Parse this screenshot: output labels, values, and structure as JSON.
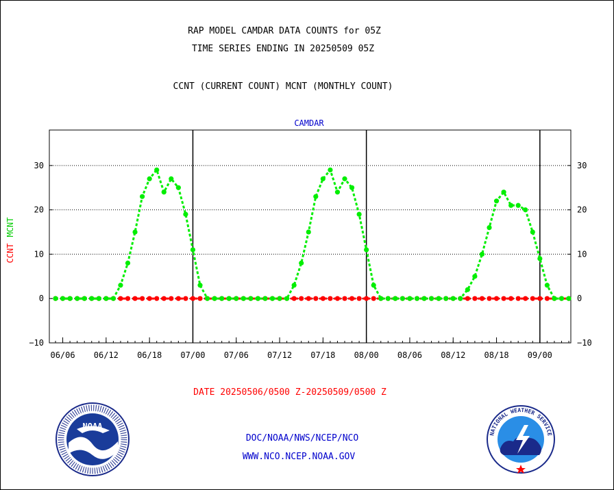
{
  "header": {
    "title_line1": "RAP MODEL CAMDAR DATA COUNTS for 05Z",
    "title_line2": "TIME SERIES ENDING IN 20250509 05Z",
    "subtitle": "CCNT (CURRENT COUNT) MCNT (MONTHLY COUNT)"
  },
  "footer": {
    "date_range": "DATE 20250506/0500 Z-20250509/0500 Z",
    "org_line": "DOC/NOAA/NWS/NCEP/NCO",
    "website": "WWW.NCO.NCEP.NOAA.GOV"
  },
  "logos": {
    "left": "NOAA",
    "right": "NATIONAL WEATHER SERVICE"
  },
  "colors": {
    "ccnt": "#ff0000",
    "mcnt": "#00ee00",
    "label_blue": "#0000cc",
    "date_red": "#ff0000"
  },
  "chart_data": {
    "type": "line",
    "title": "CAMDAR",
    "ylabel_parts": [
      "CCNT",
      "MCNT"
    ],
    "x_tick_labels": [
      "06/06",
      "06/12",
      "06/18",
      "07/00",
      "07/06",
      "07/12",
      "07/18",
      "08/00",
      "08/06",
      "08/12",
      "08/18",
      "09/00"
    ],
    "y_ticks": [
      -10,
      0,
      10,
      20,
      30
    ],
    "ylim": [
      -10,
      38
    ],
    "grid": "dotted horizontal lines at 10, 20, 30; solid vertical lines at day boundaries 07/00, 08/00, 09/00",
    "x_range_hours": [
      0,
      72
    ],
    "x_unit": "hour index from 06/05 Z",
    "series": [
      {
        "name": "CCNT",
        "color": "#ff0000",
        "values": [
          0,
          0,
          0,
          0,
          0,
          0,
          0,
          0,
          0,
          0,
          0,
          0,
          0,
          0,
          0,
          0,
          0,
          0,
          0,
          0,
          0,
          0,
          0,
          0,
          0,
          0,
          0,
          0,
          0,
          0,
          0,
          0,
          0,
          0,
          0,
          0,
          0,
          0,
          0,
          0,
          0,
          0,
          0,
          0,
          0,
          0,
          0,
          0,
          0,
          0,
          0,
          0,
          0,
          0,
          0,
          0,
          0,
          0,
          0,
          0,
          0,
          0,
          0,
          0,
          0,
          0,
          0,
          0,
          0,
          0,
          0,
          0,
          0
        ]
      },
      {
        "name": "MCNT",
        "color": "#00ee00",
        "values": [
          0,
          0,
          0,
          0,
          0,
          0,
          0,
          0,
          0,
          3,
          8,
          15,
          23,
          27,
          29,
          24,
          27,
          25,
          19,
          11,
          3,
          0,
          0,
          0,
          0,
          0,
          0,
          0,
          0,
          0,
          0,
          0,
          0,
          3,
          8,
          15,
          23,
          27,
          29,
          24,
          27,
          25,
          19,
          11,
          3,
          0,
          0,
          0,
          0,
          0,
          0,
          0,
          0,
          0,
          0,
          0,
          0,
          2,
          5,
          10,
          16,
          22,
          24,
          21,
          21,
          20,
          15,
          9,
          3,
          0,
          0,
          0,
          0
        ]
      }
    ]
  }
}
